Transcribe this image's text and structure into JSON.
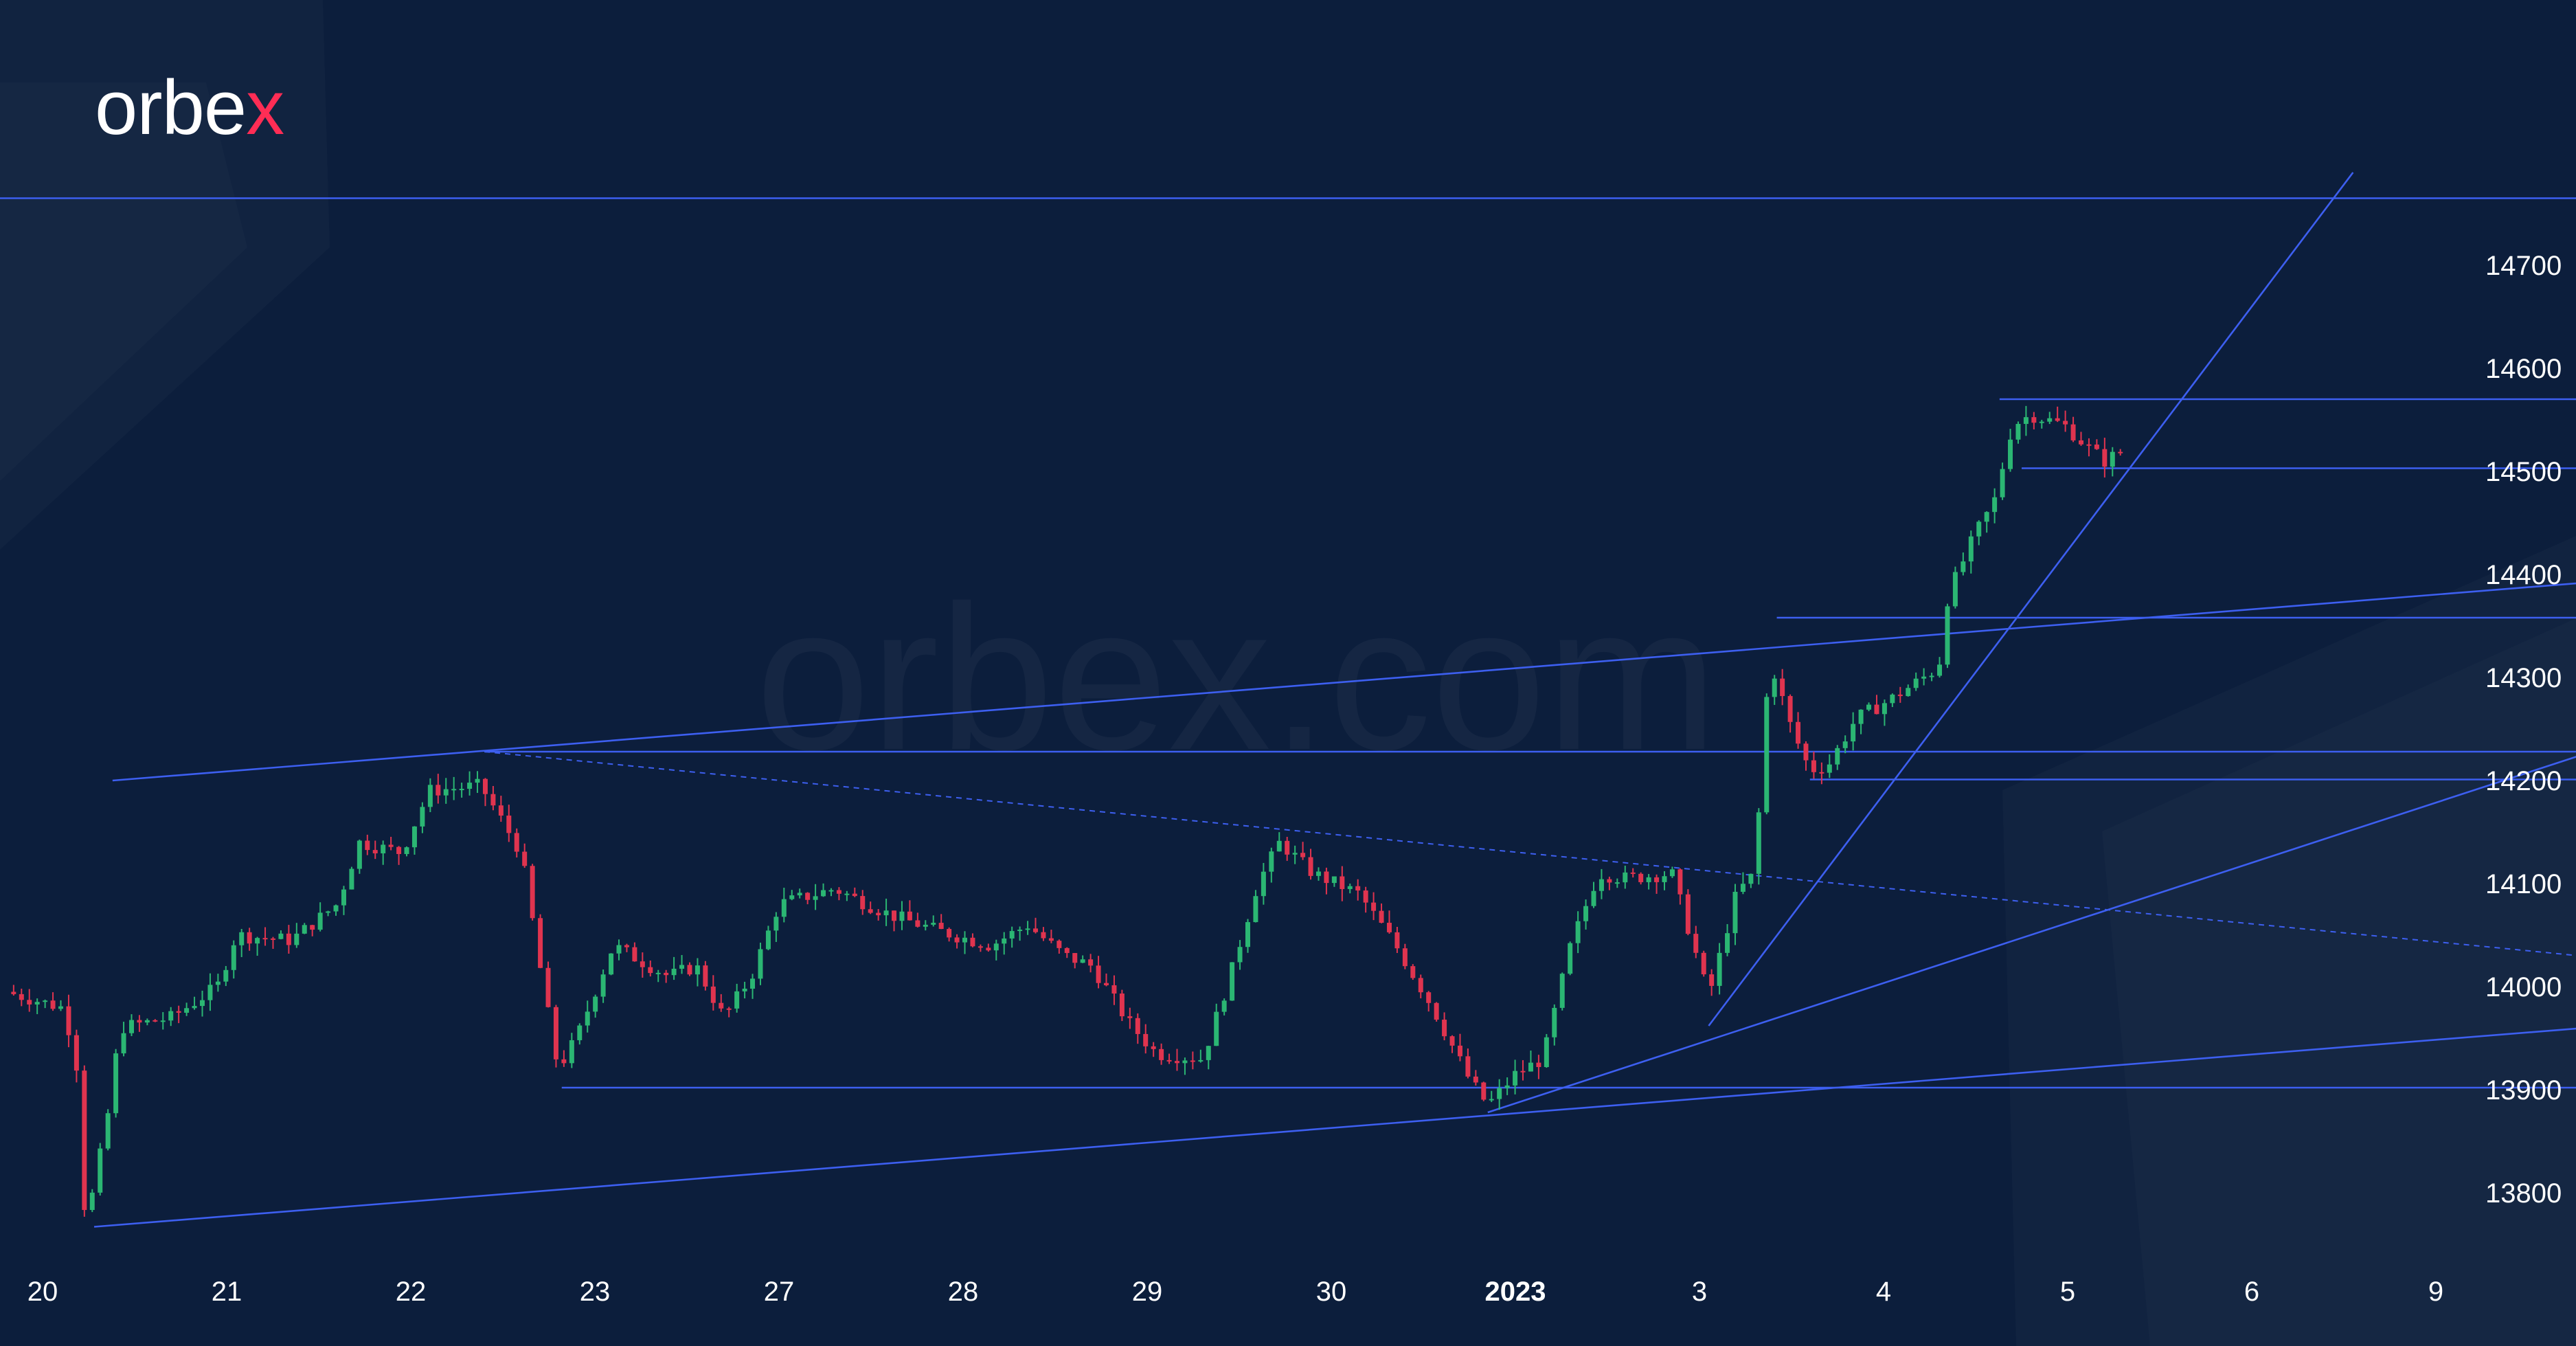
{
  "brand": {
    "logo_prefix": "orbe",
    "logo_suffix": "x",
    "watermark": "orbex.com"
  },
  "colors": {
    "background": "#0c1e3c",
    "up_candle": "#2bb673",
    "down_candle": "#e0344f",
    "line_color": "#3d5ff0",
    "logo_accent": "#ff2d55"
  },
  "chart_data": {
    "type": "candlestick",
    "title": "",
    "xlabel": "",
    "ylabel": "",
    "ylim": [
      13730,
      14785
    ],
    "y_ticks": [
      13800,
      13900,
      14000,
      14100,
      14200,
      14300,
      14400,
      14500,
      14600,
      14700
    ],
    "x_ticks": [
      {
        "label": "20",
        "pos": 0.0
      },
      {
        "label": "21",
        "pos": 1.0
      },
      {
        "label": "22",
        "pos": 2.0
      },
      {
        "label": "23",
        "pos": 3.0
      },
      {
        "label": "27",
        "pos": 4.0
      },
      {
        "label": "28",
        "pos": 5.0
      },
      {
        "label": "29",
        "pos": 6.0
      },
      {
        "label": "30",
        "pos": 7.0
      },
      {
        "label": "2023",
        "pos": 8.0,
        "bold": true
      },
      {
        "label": "3",
        "pos": 9.0
      },
      {
        "label": "4",
        "pos": 10.0
      },
      {
        "label": "5",
        "pos": 11.0
      },
      {
        "label": "6",
        "pos": 12.0
      },
      {
        "label": "9",
        "pos": 13.0
      }
    ],
    "xlim": [
      -0.25,
      13.95
    ],
    "anchors": [
      [
        -0.2,
        13995
      ],
      [
        0.1,
        13980
      ],
      [
        0.18,
        13940
      ],
      [
        0.22,
        13790
      ],
      [
        0.25,
        13780
      ],
      [
        0.35,
        13870
      ],
      [
        0.42,
        13960
      ],
      [
        0.7,
        13970
      ],
      [
        0.95,
        14000
      ],
      [
        1.05,
        14050
      ],
      [
        1.35,
        14045
      ],
      [
        1.6,
        14080
      ],
      [
        1.72,
        14140
      ],
      [
        1.95,
        14130
      ],
      [
        2.1,
        14190
      ],
      [
        2.38,
        14195
      ],
      [
        2.6,
        14130
      ],
      [
        2.72,
        14000
      ],
      [
        2.8,
        13920
      ],
      [
        2.9,
        13950
      ],
      [
        3.1,
        14040
      ],
      [
        3.4,
        14010
      ],
      [
        3.55,
        14020
      ],
      [
        3.7,
        13970
      ],
      [
        3.85,
        14010
      ],
      [
        4.0,
        14080
      ],
      [
        4.3,
        14095
      ],
      [
        4.6,
        14070
      ],
      [
        4.85,
        14055
      ],
      [
        5.15,
        14040
      ],
      [
        5.35,
        14060
      ],
      [
        5.55,
        14030
      ],
      [
        5.7,
        14020
      ],
      [
        5.9,
        13965
      ],
      [
        6.05,
        13935
      ],
      [
        6.3,
        13930
      ],
      [
        6.45,
        14010
      ],
      [
        6.6,
        14100
      ],
      [
        6.72,
        14140
      ],
      [
        6.9,
        14110
      ],
      [
        7.15,
        14090
      ],
      [
        7.35,
        14040
      ],
      [
        7.55,
        13980
      ],
      [
        7.75,
        13910
      ],
      [
        7.85,
        13885
      ],
      [
        8.0,
        13915
      ],
      [
        8.15,
        13930
      ],
      [
        8.3,
        14040
      ],
      [
        8.45,
        14110
      ],
      [
        8.6,
        14105
      ],
      [
        8.85,
        14110
      ],
      [
        9.05,
        13990
      ],
      [
        9.2,
        14090
      ],
      [
        9.3,
        14110
      ],
      [
        9.38,
        14320
      ],
      [
        9.5,
        14250
      ],
      [
        9.6,
        14210
      ],
      [
        9.7,
        14215
      ],
      [
        9.85,
        14260
      ],
      [
        10.05,
        14280
      ],
      [
        10.3,
        14310
      ],
      [
        10.35,
        14380
      ],
      [
        10.5,
        14440
      ],
      [
        10.6,
        14470
      ],
      [
        10.7,
        14545
      ],
      [
        10.8,
        14555
      ],
      [
        10.98,
        14545
      ],
      [
        11.1,
        14525
      ],
      [
        11.2,
        14510
      ],
      [
        11.3,
        14520
      ],
      [
        11.32,
        14505
      ]
    ],
    "candle_step": 0.0427,
    "levels": [
      {
        "name": "h-line-14765",
        "from": [
          -0.25,
          14765
        ],
        "to": [
          13.95,
          14765
        ]
      },
      {
        "name": "h-line-14570",
        "from": [
          10.63,
          14570
        ],
        "to": [
          13.95,
          14570
        ]
      },
      {
        "name": "h-line-14503",
        "from": [
          10.75,
          14503
        ],
        "to": [
          13.95,
          14503
        ]
      },
      {
        "name": "h-line-14358",
        "from": [
          9.42,
          14358
        ],
        "to": [
          13.95,
          14358
        ]
      },
      {
        "name": "h-line-14228",
        "from": [
          2.4,
          14228
        ],
        "to": [
          13.95,
          14228
        ]
      },
      {
        "name": "h-line-14201",
        "from": [
          9.6,
          14201
        ],
        "to": [
          13.95,
          14201
        ]
      },
      {
        "name": "h-line-13902",
        "from": [
          2.82,
          13902
        ],
        "to": [
          13.95,
          13902
        ]
      },
      {
        "name": "upper-channel-line",
        "from": [
          0.38,
          14200
        ],
        "to": [
          13.95,
          14394
        ]
      },
      {
        "name": "lower-trendline",
        "from": [
          0.28,
          13767
        ],
        "to": [
          13.95,
          13962
        ]
      },
      {
        "name": "mid-trendline",
        "from": [
          7.85,
          13878
        ],
        "to": [
          13.95,
          14234
        ]
      },
      {
        "name": "steep-trendline",
        "from": [
          9.05,
          13962
        ],
        "to": [
          12.55,
          14790
        ]
      },
      {
        "name": "dotted-trendline",
        "from": [
          2.4,
          14228
        ],
        "to": [
          13.95,
          14027
        ],
        "dashed": true
      }
    ]
  }
}
